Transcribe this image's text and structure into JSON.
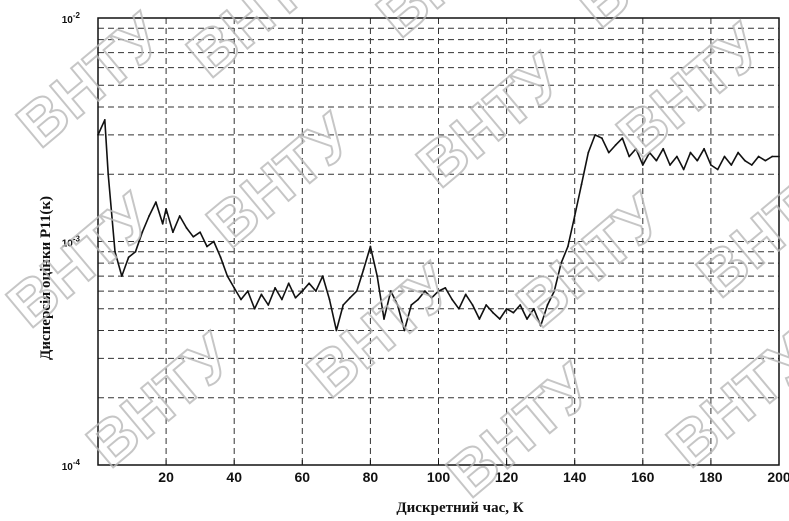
{
  "watermark": "ВНТУ",
  "chart_data": {
    "type": "line",
    "xlabel": "Дискретний час, К",
    "ylabel": "Дисперсія оцінки P11(к)",
    "xlim": [
      0,
      200
    ],
    "ylim": [
      0.0001,
      0.01
    ],
    "yscale": "log",
    "grid": true,
    "x_ticks": [
      20,
      40,
      60,
      80,
      100,
      120,
      140,
      160,
      180,
      200
    ],
    "y_ticks": [
      {
        "value": 0.0001,
        "base": "10",
        "exp": "-4"
      },
      {
        "value": 0.001,
        "base": "10",
        "exp": "-3"
      },
      {
        "value": 0.01,
        "base": "10",
        "exp": "-2"
      }
    ],
    "series": [
      {
        "x": [
          0,
          2,
          3,
          5,
          7,
          9,
          11,
          13,
          15,
          17,
          19,
          20,
          22,
          24,
          26,
          28,
          30,
          32,
          34,
          36,
          38,
          40,
          42,
          44,
          46,
          48,
          50,
          52,
          54,
          56,
          58,
          60,
          62,
          64,
          66,
          68,
          70,
          72,
          74,
          76,
          78,
          80,
          82,
          84,
          86,
          88,
          90,
          92,
          94,
          96,
          98,
          100,
          102,
          104,
          106,
          108,
          110,
          112,
          114,
          116,
          118,
          120,
          122,
          124,
          126,
          128,
          130,
          132,
          134,
          136,
          138,
          140,
          142,
          144,
          146,
          148,
          150,
          152,
          154,
          156,
          158,
          160,
          162,
          164,
          166,
          168,
          170,
          172,
          174,
          176,
          178,
          180,
          182,
          184,
          186,
          188,
          190,
          192,
          194,
          196,
          198,
          200
        ],
        "values": [
          0.003,
          0.0035,
          0.002,
          0.0009,
          0.0007,
          0.00085,
          0.0009,
          0.0011,
          0.0013,
          0.0015,
          0.0012,
          0.0014,
          0.0011,
          0.0013,
          0.00115,
          0.00105,
          0.0011,
          0.00095,
          0.001,
          0.00085,
          0.0007,
          0.00062,
          0.00055,
          0.0006,
          0.0005,
          0.00058,
          0.00052,
          0.00062,
          0.00055,
          0.00065,
          0.00056,
          0.0006,
          0.00065,
          0.0006,
          0.0007,
          0.00055,
          0.0004,
          0.00052,
          0.00056,
          0.0006,
          0.00075,
          0.00095,
          0.0007,
          0.00045,
          0.0006,
          0.00052,
          0.0004,
          0.00052,
          0.00055,
          0.0006,
          0.00056,
          0.0006,
          0.00062,
          0.00055,
          0.0005,
          0.00058,
          0.00052,
          0.00045,
          0.00052,
          0.00048,
          0.00045,
          0.0005,
          0.00048,
          0.00052,
          0.00045,
          0.0005,
          0.00042,
          0.00052,
          0.0006,
          0.0008,
          0.00095,
          0.0013,
          0.0018,
          0.0025,
          0.003,
          0.0029,
          0.0025,
          0.0027,
          0.0029,
          0.0024,
          0.0026,
          0.0022,
          0.0025,
          0.0023,
          0.0026,
          0.0022,
          0.0024,
          0.0021,
          0.0025,
          0.0023,
          0.0026,
          0.0022,
          0.0021,
          0.0024,
          0.0022,
          0.0025,
          0.0023,
          0.0022,
          0.0024,
          0.0023,
          0.0024,
          0.0024
        ]
      }
    ]
  }
}
